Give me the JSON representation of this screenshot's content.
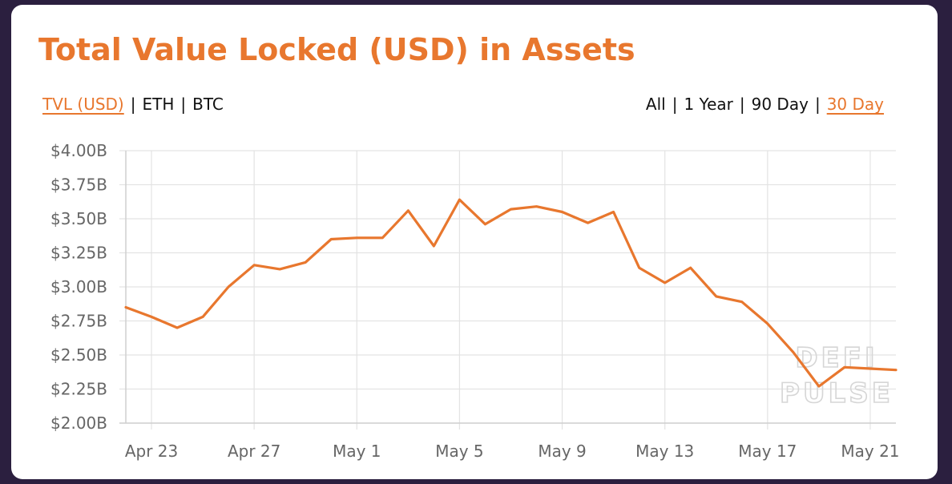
{
  "chart_data": {
    "type": "line",
    "title": "Total Value Locked (USD) in Assets",
    "xlabel": "",
    "ylabel": "",
    "x": [
      "Apr 22",
      "Apr 23",
      "Apr 24",
      "Apr 25",
      "Apr 26",
      "Apr 27",
      "Apr 28",
      "Apr 29",
      "Apr 30",
      "May 1",
      "May 2",
      "May 3",
      "May 4",
      "May 5",
      "May 6",
      "May 7",
      "May 8",
      "May 9",
      "May 10",
      "May 11",
      "May 12",
      "May 13",
      "May 14",
      "May 15",
      "May 16",
      "May 17",
      "May 18",
      "May 19",
      "May 20",
      "May 21",
      "May 22"
    ],
    "series": [
      {
        "values": [
          2.85,
          2.78,
          2.7,
          2.78,
          3.0,
          3.16,
          3.13,
          3.18,
          3.35,
          3.36,
          3.36,
          3.56,
          3.3,
          3.64,
          3.46,
          3.57,
          3.59,
          3.55,
          3.47,
          3.55,
          3.14,
          3.03,
          3.14,
          2.93,
          2.89,
          2.73,
          2.52,
          2.27,
          2.41,
          2.4,
          2.39
        ]
      }
    ],
    "ylim": [
      2.0,
      4.0
    ],
    "yticks": [
      2.0,
      2.25,
      2.5,
      2.75,
      3.0,
      3.25,
      3.5,
      3.75,
      4.0
    ],
    "ytick_labels": [
      "$2.00B",
      "$2.25B",
      "$2.50B",
      "$2.75B",
      "$3.00B",
      "$3.25B",
      "$3.50B",
      "$3.75B",
      "$4.00B"
    ],
    "xticks": [
      "Apr 23",
      "Apr 27",
      "May 1",
      "May 5",
      "May 9",
      "May 13",
      "May 17",
      "May 21"
    ],
    "grid": true,
    "line_color": "#e8772e",
    "grid_color": "#e3e3e3"
  },
  "controls": {
    "metric_options": [
      {
        "label": "TVL (USD)",
        "active": true
      },
      {
        "label": "ETH",
        "active": false
      },
      {
        "label": "BTC",
        "active": false
      }
    ],
    "range_options": [
      {
        "label": "All",
        "active": false
      },
      {
        "label": "1 Year",
        "active": false
      },
      {
        "label": "90 Day",
        "active": false
      },
      {
        "label": "30 Day",
        "active": true
      }
    ],
    "separator": "|"
  },
  "watermark": {
    "line1": "DEFI",
    "line2": "PULSE"
  },
  "colors": {
    "accent": "#e8772e",
    "background": "#2b1f3f",
    "card": "#ffffff"
  }
}
